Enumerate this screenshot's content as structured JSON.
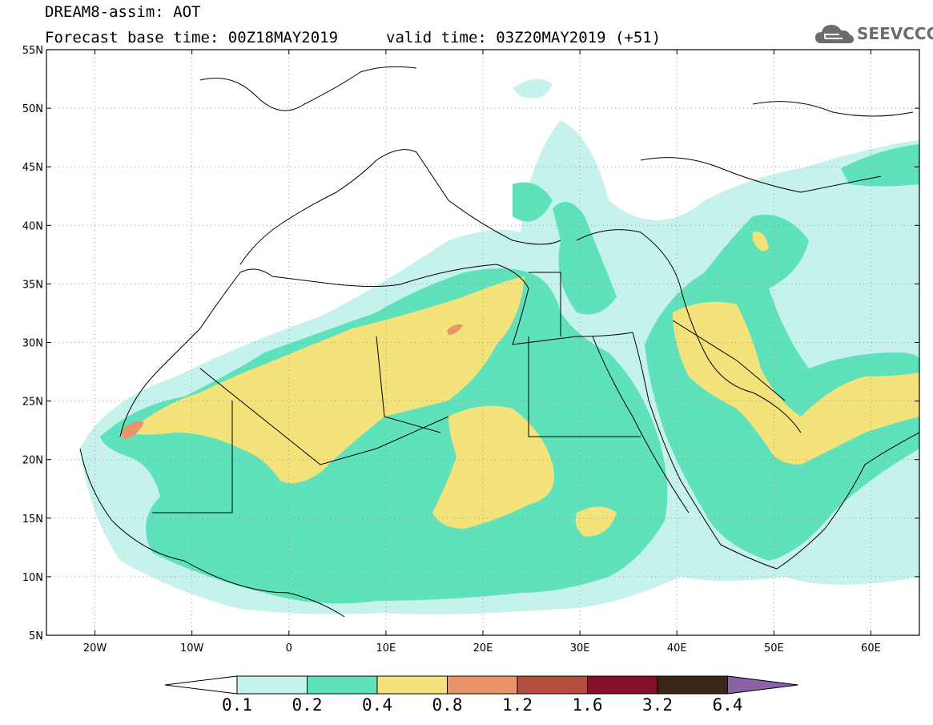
{
  "header": {
    "title": "DREAM8-assim: AOT",
    "base_time": "Forecast base time: 00Z18MAY2019",
    "valid_time": "valid time: 03Z20MAY2019 (+51)"
  },
  "logo": {
    "text": "SEEVCCC",
    "icon": "cloud-icon"
  },
  "map": {
    "lat_labels": [
      "55N",
      "50N",
      "45N",
      "40N",
      "35N",
      "30N",
      "25N",
      "20N",
      "15N",
      "10N",
      "5N"
    ],
    "lon_labels": [
      "20W",
      "10W",
      "0",
      "10E",
      "20E",
      "30E",
      "40E",
      "50E",
      "60E"
    ],
    "lat_values": [
      55,
      50,
      45,
      40,
      35,
      30,
      25,
      20,
      15,
      10,
      5
    ],
    "lon_values": [
      -20,
      -10,
      0,
      10,
      20,
      30,
      40,
      50,
      60
    ],
    "extent": {
      "lon_min": -25,
      "lon_max": 65,
      "lat_min": 5,
      "lat_max": 55
    },
    "gridlines": true
  },
  "colorbar": {
    "levels": [
      "0.1",
      "0.2",
      "0.4",
      "0.8",
      "1.2",
      "1.6",
      "3.2",
      "6.4"
    ],
    "colors": [
      "#c6f2ec",
      "#5fe1bb",
      "#f4e27a",
      "#ea9468",
      "#b24f3e",
      "#830f2a",
      "#3b2517",
      "#8a62a8"
    ],
    "under_color": "#ffffff"
  }
}
